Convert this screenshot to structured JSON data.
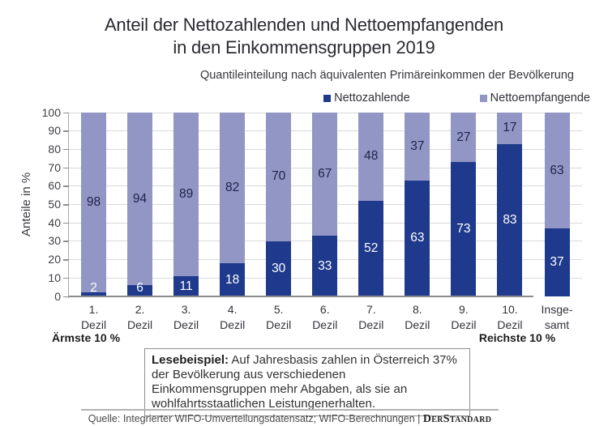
{
  "title": {
    "line1": "Anteil der Nettozahlenden und Nettoempfangenden",
    "line2": "in den Einkommensgruppen 2019"
  },
  "subtitle": "Quantileinteilung nach äquivalenten Primäreinkommen der Bevölkerung",
  "chart_data": {
    "type": "bar",
    "stacked": true,
    "categories": [
      "1. Dezil",
      "2. Dezil",
      "3. Dezil",
      "4. Dezil",
      "5. Dezil",
      "6. Dezil",
      "7. Dezil",
      "8. Dezil",
      "9. Dezil",
      "10. Dezil",
      "Insgesamt"
    ],
    "category_labels": [
      [
        "1.",
        "Dezil"
      ],
      [
        "2.",
        "Dezil"
      ],
      [
        "3.",
        "Dezil"
      ],
      [
        "4.",
        "Dezil"
      ],
      [
        "5.",
        "Dezil"
      ],
      [
        "6.",
        "Dezil"
      ],
      [
        "7.",
        "Dezil"
      ],
      [
        "8.",
        "Dezil"
      ],
      [
        "9.",
        "Dezil"
      ],
      [
        "10.",
        "Dezil"
      ],
      [
        "Insge-",
        "samt"
      ]
    ],
    "series": [
      {
        "name": "Nettozahlende",
        "color": "#1f3a8c",
        "label_color": "#ffffff",
        "values": [
          2,
          6,
          11,
          18,
          30,
          33,
          52,
          63,
          73,
          83,
          37
        ]
      },
      {
        "name": "Nettoempfangende",
        "color": "#9196c4",
        "label_color": "#20244a",
        "values": [
          98,
          94,
          89,
          82,
          70,
          67,
          48,
          37,
          27,
          17,
          63
        ]
      }
    ],
    "ylabel": "Anteile in %",
    "ylim": [
      0,
      100
    ],
    "ytick_step": 10,
    "grid": true,
    "legend_position": "top-right",
    "notes": "x-axis baseline spans only the 10 decile bars; Insgesamt bar stands apart"
  },
  "annotations": {
    "left": "Ärmste 10 %",
    "right": "Reichste 10 %"
  },
  "note": {
    "label": "Lesebeispiel:",
    "text": " Auf Jahresbasis zahlen in Österreich 37% der Bevölkerung aus verschiedenen Einkommensgruppen mehr Abgaben, als sie an wohlfahrtsstaatlichen Leistungenerhalten."
  },
  "source": {
    "text": "Quelle: Integrierter WIFO-Umverteilungsdatensatz; WIFO-Berechnungen | ",
    "brand": "DerStandard"
  }
}
